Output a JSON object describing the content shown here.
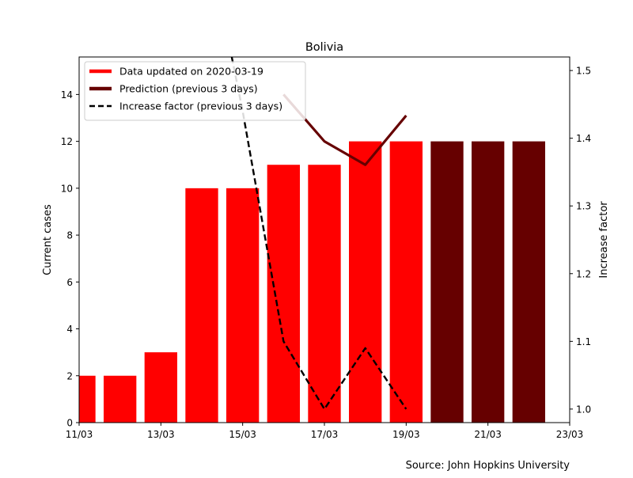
{
  "chart_data": {
    "type": "bar",
    "title": "Bolivia",
    "xlabel": "",
    "ylabel": "Current cases",
    "y2label": "Increase factor",
    "source": "Source: John Hopkins University",
    "x_tick_labels": [
      "11/03",
      "13/03",
      "15/03",
      "17/03",
      "19/03",
      "21/03",
      "23/03"
    ],
    "y_ticks": [
      0,
      2,
      4,
      6,
      8,
      10,
      12,
      14
    ],
    "y2_ticks": [
      1.0,
      1.1,
      1.2,
      1.3,
      1.4,
      1.5
    ],
    "ylim": [
      0,
      15.6
    ],
    "y2lim": [
      0.98,
      1.52
    ],
    "grid": false,
    "legend_position": "top-left",
    "bar_series": [
      {
        "name": "Data updated on 2020-03-19",
        "color": "#ff0000",
        "dates": [
          "11/03",
          "12/03",
          "13/03",
          "14/03",
          "15/03",
          "16/03",
          "17/03",
          "18/03",
          "19/03"
        ],
        "values": [
          2,
          2,
          3,
          10,
          10,
          11,
          11,
          12,
          12
        ]
      },
      {
        "name": "Prediction (previous 3 days)",
        "color": "#660000",
        "dates": [
          "20/03",
          "21/03",
          "22/03"
        ],
        "values": [
          12,
          12,
          12
        ]
      }
    ],
    "line_series": [
      {
        "name": "Prediction (previous 3 days)",
        "axis": "left",
        "color": "#660000",
        "style": "solid",
        "dates": [
          "16/03",
          "17/03",
          "18/03",
          "19/03"
        ],
        "values": [
          14,
          12,
          11,
          13.1
        ]
      },
      {
        "name": "Increase factor (previous 3 days)",
        "axis": "right",
        "color": "#000000",
        "style": "dashed",
        "dates": [
          "14/03",
          "15/03",
          "16/03",
          "17/03",
          "18/03",
          "19/03"
        ],
        "values": [
          1.74,
          1.44,
          1.1,
          1.0,
          1.09,
          1.0
        ]
      }
    ],
    "legend": [
      {
        "label": "Data updated on 2020-03-19",
        "color": "#ff0000",
        "style": "thick"
      },
      {
        "label": "Prediction (previous 3 days)",
        "color": "#660000",
        "style": "thick"
      },
      {
        "label": "Increase factor (previous 3 days)",
        "color": "#000000",
        "style": "dashed"
      }
    ]
  }
}
